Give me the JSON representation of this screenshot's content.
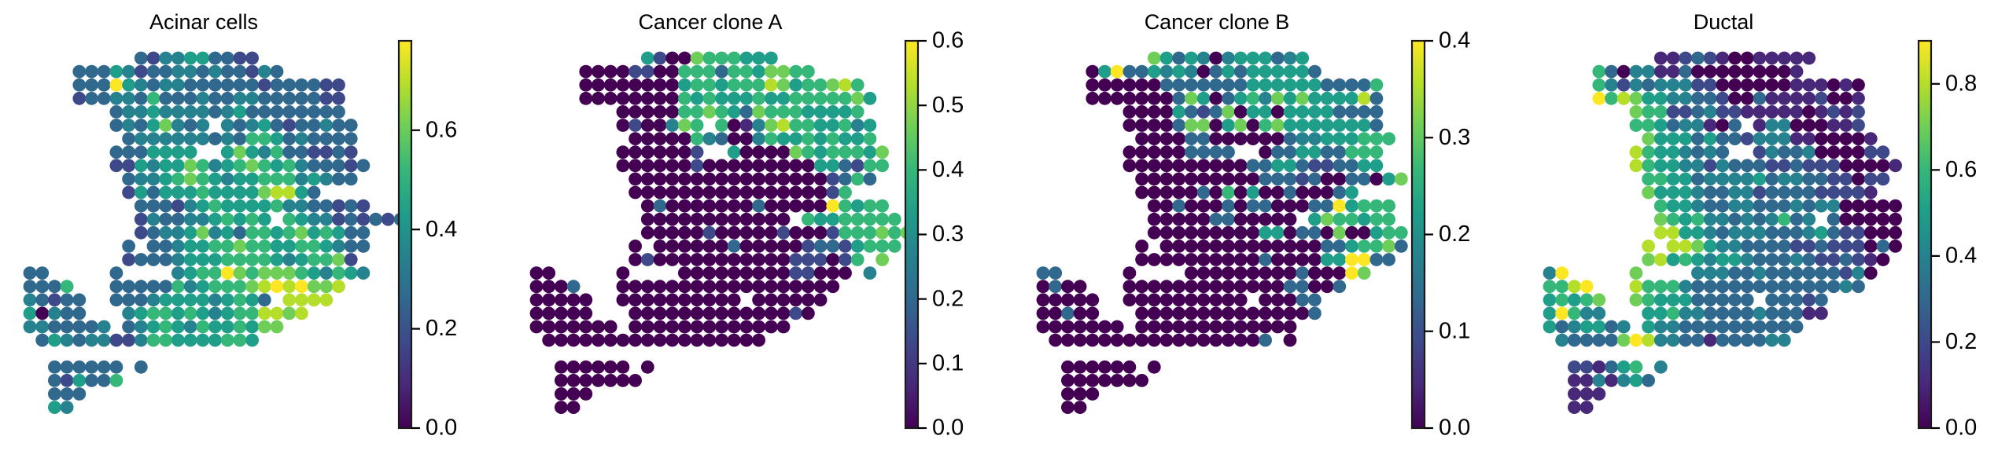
{
  "chart_data": {
    "type": "scatter",
    "subtype": "spatial-spot-heatmap",
    "colormap": "viridis",
    "colormap_stops": [
      "#440154",
      "#482878",
      "#3e4989",
      "#31688e",
      "#26828e",
      "#1f9e89",
      "#35b779",
      "#6ece58",
      "#b5de2b",
      "#fde725"
    ],
    "grid_encoding": "Each row string lists spots by grid column; '.' = no spot, digit d = value approximately (d/9) * vmax",
    "panels": [
      {
        "title": "Acinar cells",
        "vmin": 0.0,
        "vmax": 0.78,
        "ticks": [
          "0.0",
          "0.2",
          "0.4",
          "0.6"
        ],
        "tick_values": [
          0.0,
          0.2,
          0.4,
          0.6
        ],
        "grid": [
          ".........3244553322..........",
          "....33354233443433243........",
          "....3339543443333332333322...",
          "....2334436333433443333322...",
          ".......3445444434533333333...",
          ".......34357434.43453233433..",
          "........3444444343665343333..",
          ".......3335555..57546332232..",
          ".......225455764567656433323.",
          "........3445676545566645433..",
          "........2535556555578853.....",
          ".........3332456555564433232.",
          ".........24334456565.6544232323",
          ".........2344574536656756533..",
          "........3.334556676655665433",
          "........2333455566665456672.",
          "33.....3....4566976777654654..",
          "3336...3333364566678989778...",
          "43233..3334555545653.8888....",
          "50433...456656545668878.....",
          "4433334.3456546556577......",
          ".354344224665555665..........",
          ".............................",
          "..333333.3...................",
          "..325336.....................",
          "..333........................",
          "..54........................."
        ]
      },
      {
        "title": "Cancer clone A",
        "vmin": 0.0,
        "vmax": 0.6,
        "ticks": [
          "0.0",
          "0.1",
          "0.2",
          "0.3",
          "0.4",
          "0.5",
          "0.6"
        ],
        "tick_values": [
          0.0,
          0.1,
          0.2,
          0.3,
          0.4,
          0.5,
          0.6
        ],
        "grid": [
          ".........52007666555.........",
          "....0000220066636657766......",
          "....00000000566566687566786..",
          "....000000006565556556666675.",
          ".......00000667653766655556..",
          ".......0200476.6014786655645.",
          "........00000643004655656556.",
          ".......0000002..5000076566657",
          ".......0000002000000000553266",
          "........00000000000000002363.",
          "........000000000000000026...",
          ".........03000000030000096566",
          ".........000000000000.65566666",
          ".........0000020000020002666767",
          "........0.00000030000023325666",
          "........0200000000000222026.7.",
          "00.....0....00000000022000.4.",
          "0003...000000000000000000....",
          "00000..0000000000.000000.....",
          "00000...000000000000020.....",
          "0000000.0000000000000.......",
          ".000000000000000000..........",
          ".............................",
          "..000000.0...................",
          "..0000000....................",
          "..000........................",
          "..00........................."
        ]
      },
      {
        "title": "Cancer clone B",
        "vmin": 0.0,
        "vmax": 0.4,
        "ticks": [
          "0.0",
          "0.1",
          "0.2",
          "0.3",
          "0.4"
        ],
        "tick_values": [
          0.0,
          0.1,
          0.2,
          0.3,
          0.4
        ],
        "grid": [
          ".........7535404555345.......",
          "....0593354540353555553......",
          "....000000333333355555533336.",
          "....000000037503564757555583.",
          ".......000053237055055553333",
          ".......000037705706755555553",
          "........000033000000344555666",
          ".......000003333..0335533666.",
          ".......000000000033553223355.",
          "........0000000000333230033057",
          "........000003060500300035...",
          ".........00300030330003395666",
          ".........000003300000.5766566",
          ".........000000000550330700566",
          "........0.00000000000003356673",
          "........000000000030000559933",
          "33.....0....000000000300097..",
          "0300...000000000000033003....",
          "00000..0000000000.00033......",
          "00300...000000000000003.....",
          "0000000.0000000000000.......",
          ".000000000000000003.0........",
          ".............................",
          "..000000.0...................",
          "..0000000....................",
          "..000........................",
          "..00........................."
        ]
      },
      {
        "title": "Ductal",
        "vmin": 0.0,
        "vmax": 0.9,
        "ticks": [
          "0.0",
          "0.2",
          "0.4",
          "0.6",
          "0.8"
        ],
        "tick_values": [
          0.0,
          0.2,
          0.4,
          0.6,
          0.8
        ],
        "grid": [
          ".........1123210011111.......",
          "....63044113000000001........",
          "....6424344422000000111010...",
          "....9687554433200311112001...",
          ".......7662234221111101212...",
          ".......665344103.144000112...",
          "........7555353324441100001..",
          ".......86554343..24334000022.",
          ".......8655442433322322200001",
          "........66553444453443322022.",
          "........7555433442333322221..",
          ".........65543344333434400000",
          ".........7656443434634.300000",
          ".........88554344433345322000",
          "........8.8875443333223222030",
          "........78565455433343223210.",
          "49.....7....444334333333240..",
          "6689...8666433333333333343...",
          "56567..7655533333.33323......",
          "59644...556443333433311.....",
          "5345534.5443333333333......",
          ".4333379844331333344.........",
          ".............................",
          "..221356.4...................",
          "..1141453....................",
          "..111........................",
          "..11........................."
        ]
      }
    ]
  }
}
